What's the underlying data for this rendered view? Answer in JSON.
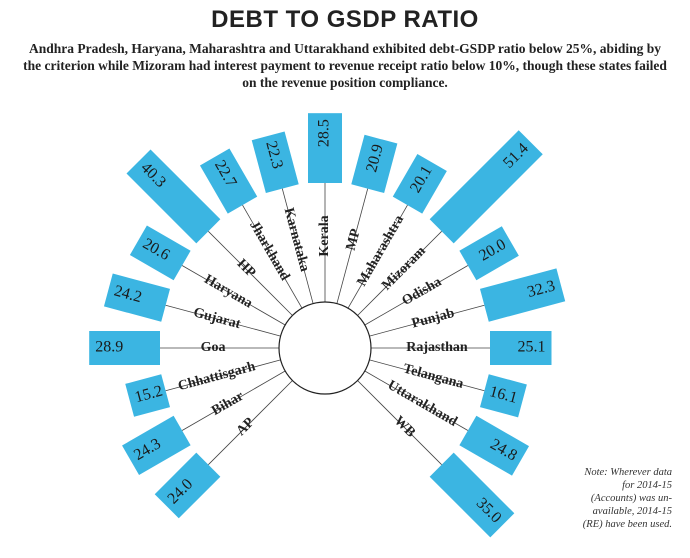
{
  "chart_data": {
    "type": "radial-bar",
    "title": "DEBT TO GSDP RATIO",
    "subtitle": "Andhra Pradesh, Haryana, Maharashtra and Uttarakhand exhibited debt-GSDP ratio below 25%, abiding by the criterion while Mizoram had interest payment to revenue receipt ratio below 10%, though these states failed on the revenue position compliance.",
    "note": "Note: Wherever data for 2014-15 (Accounts) was un-available, 2014-15 (RE) have been used.",
    "categories": [
      "AP",
      "Bihar",
      "Chhattisgarh",
      "Goa",
      "Gujarat",
      "Haryana",
      "HP",
      "Jharkhand",
      "Karnataka",
      "Kerala",
      "MP",
      "Maharashtra",
      "Mizoram",
      "Odisha",
      "Punjab",
      "Rajasthan",
      "Telangana",
      "Uttarakhand",
      "WB"
    ],
    "values": [
      24.0,
      24.3,
      15.2,
      28.9,
      24.2,
      20.6,
      40.3,
      22.7,
      22.3,
      28.5,
      20.9,
      20.1,
      51.4,
      20.0,
      32.3,
      25.1,
      16.1,
      24.8,
      35.0
    ],
    "value_labels": [
      "24.0",
      "24.3",
      "15.2",
      "28.9",
      "24.2",
      "20.6",
      "40.3",
      "22.7",
      "22.3",
      "28.5",
      "20.9",
      "20.1",
      "51.4",
      "20.0",
      "32.3",
      "25.1",
      "16.1",
      "24.8",
      "35.0"
    ],
    "color": "#3bb5e2"
  }
}
